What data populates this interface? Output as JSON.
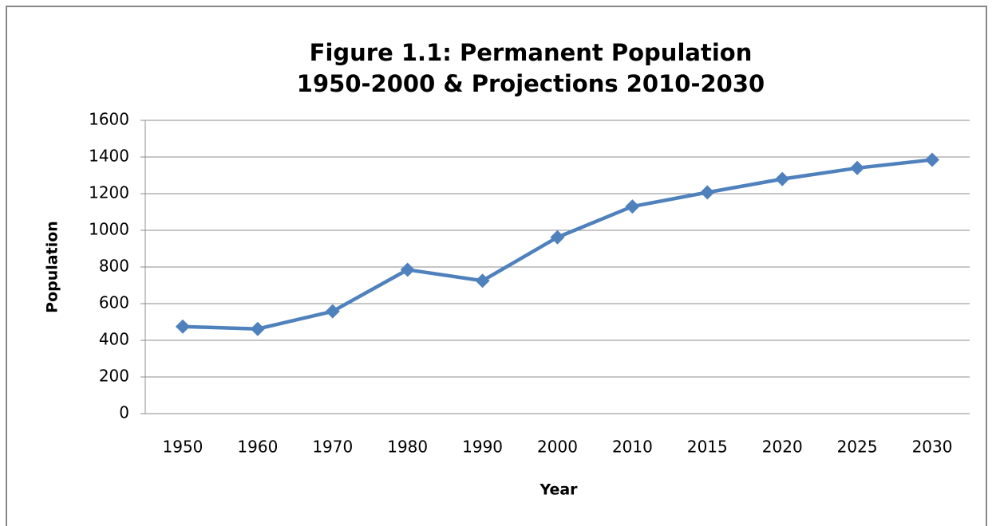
{
  "chart_data": {
    "type": "line",
    "title": [
      "Figure 1.1: Permanent Population",
      "1950-2000 & Projections 2010-2030"
    ],
    "x_label": "Year",
    "y_label": "Population",
    "categories": [
      "1950",
      "1960",
      "1970",
      "1980",
      "1990",
      "2000",
      "2010",
      "2015",
      "2020",
      "2025",
      "2030"
    ],
    "values": [
      475,
      462,
      558,
      785,
      725,
      962,
      1130,
      1207,
      1280,
      1340,
      1385
    ],
    "color": "#4f81bd",
    "ylim": [
      0,
      1600
    ],
    "yticks": [
      0,
      200,
      400,
      600,
      800,
      1000,
      1200,
      1400,
      1600
    ],
    "grid": true,
    "legend": false
  }
}
